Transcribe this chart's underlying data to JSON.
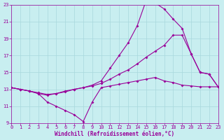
{
  "xlabel": "Windchill (Refroidissement éolien,°C)",
  "background_color": "#c8eef0",
  "grid_color": "#a8d8dc",
  "line_color": "#990099",
  "xlim": [
    0,
    23
  ],
  "ylim": [
    9,
    23
  ],
  "xticks": [
    0,
    1,
    2,
    3,
    4,
    5,
    6,
    7,
    8,
    9,
    10,
    11,
    12,
    13,
    14,
    15,
    16,
    17,
    18,
    19,
    20,
    21,
    22,
    23
  ],
  "yticks": [
    9,
    11,
    13,
    15,
    17,
    19,
    21,
    23
  ],
  "line1_x": [
    0,
    1,
    2,
    3,
    4,
    5,
    6,
    7,
    8,
    9,
    10,
    11,
    12,
    13,
    14,
    15,
    16,
    17,
    18,
    19,
    20,
    21,
    22,
    23
  ],
  "line1_y": [
    13.2,
    13.0,
    12.8,
    12.5,
    11.5,
    11.0,
    10.5,
    10.0,
    9.2,
    11.5,
    13.2,
    13.4,
    13.6,
    13.8,
    14.0,
    14.2,
    14.4,
    14.0,
    13.8,
    13.5,
    13.4,
    13.3,
    13.3,
    13.3
  ],
  "line2_x": [
    0,
    1,
    2,
    3,
    4,
    5,
    6,
    7,
    8,
    9,
    10,
    11,
    12,
    13,
    14,
    15,
    16,
    17,
    18,
    19,
    20,
    21,
    22,
    23
  ],
  "line2_y": [
    13.2,
    13.0,
    12.8,
    12.5,
    12.3,
    12.5,
    12.8,
    13.0,
    13.2,
    13.5,
    14.0,
    15.5,
    17.0,
    18.5,
    20.5,
    23.5,
    23.2,
    22.5,
    21.3,
    20.2,
    17.2,
    15.0,
    14.8,
    13.3
  ],
  "line3_x": [
    0,
    1,
    2,
    3,
    4,
    5,
    6,
    7,
    8,
    9,
    10,
    11,
    12,
    13,
    14,
    15,
    16,
    17,
    18,
    19,
    20,
    21,
    22,
    23
  ],
  "line3_y": [
    13.2,
    13.0,
    12.8,
    12.6,
    12.4,
    12.5,
    12.7,
    13.0,
    13.2,
    13.4,
    13.7,
    14.2,
    14.8,
    15.3,
    16.0,
    16.8,
    17.5,
    18.2,
    19.4,
    19.4,
    17.2,
    15.0,
    14.8,
    13.3
  ]
}
